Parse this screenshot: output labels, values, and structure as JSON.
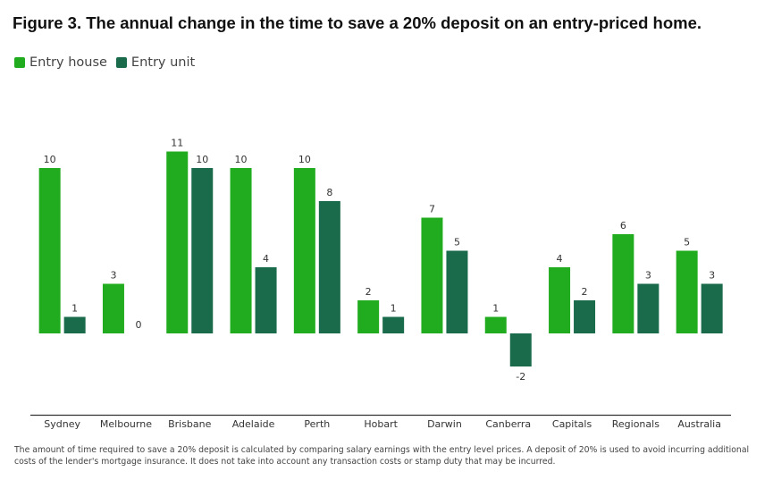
{
  "title": "Figure 3. The annual change in the time to save a 20% deposit on an entry-priced home.",
  "footnote": "The amount of time required to save a 20% deposit is calculated by comparing salary earnings with the entry level prices. A deposit of 20% is used to avoid incurring additional costs of the lender's mortgage insurance. It does not take into account any transaction costs or stamp duty that may be incurred.",
  "colors": {
    "entry_house": "#21ac1f",
    "entry_unit": "#1a6a4c"
  },
  "chart_data": {
    "type": "bar",
    "title": "",
    "xlabel": "",
    "ylabel": "",
    "categories": [
      "Sydney",
      "Melbourne",
      "Brisbane",
      "Adelaide",
      "Perth",
      "Hobart",
      "Darwin",
      "Canberra",
      "Capitals",
      "Regionals",
      "Australia"
    ],
    "series": [
      {
        "name": "Entry house",
        "values": [
          10,
          3,
          11,
          10,
          10,
          2,
          7,
          1,
          4,
          6,
          5
        ]
      },
      {
        "name": "Entry unit",
        "values": [
          1,
          0,
          10,
          4,
          8,
          1,
          5,
          -2,
          2,
          3,
          3
        ]
      }
    ],
    "ylim": [
      -5,
      11.5
    ],
    "grid": false,
    "legend": "top-left",
    "data_labels": true
  }
}
